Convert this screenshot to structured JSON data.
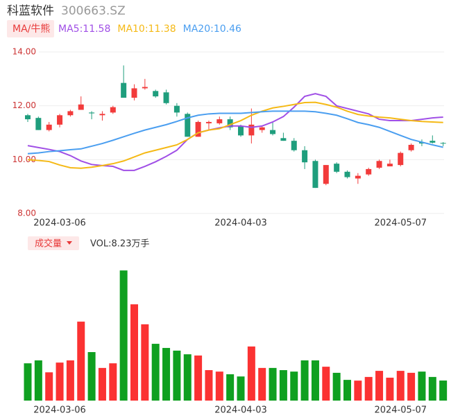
{
  "header": {
    "name": "科蓝软件",
    "code": "300663.SZ"
  },
  "chart_data": [
    {
      "type": "candlestick",
      "tab": "MA/牛熊",
      "categories": [
        null,
        null,
        null,
        "2024-03-06",
        null,
        null,
        null,
        null,
        null,
        null,
        null,
        null,
        null,
        null,
        null,
        null,
        null,
        null,
        null,
        null,
        "2024-04-03",
        null,
        null,
        null,
        null,
        null,
        null,
        null,
        null,
        null,
        null,
        null,
        null,
        null,
        null,
        "2024-05-07",
        null,
        null,
        null,
        null
      ],
      "open": [
        11.65,
        11.55,
        11.1,
        11.3,
        11.65,
        11.85,
        11.75,
        11.65,
        11.75,
        12.85,
        12.3,
        12.65,
        12.55,
        12.5,
        12.0,
        11.7,
        10.85,
        11.35,
        11.35,
        11.5,
        11.25,
        10.9,
        11.1,
        11.1,
        10.8,
        10.7,
        10.35,
        9.95,
        9.1,
        9.85,
        9.55,
        9.3,
        9.45,
        9.7,
        9.75,
        9.8,
        10.35,
        10.65,
        10.7,
        10.62
      ],
      "close": [
        11.5,
        11.1,
        11.3,
        11.65,
        11.8,
        12.05,
        11.72,
        11.7,
        11.95,
        12.3,
        12.65,
        12.7,
        12.35,
        12.1,
        11.75,
        10.85,
        11.4,
        11.4,
        11.5,
        11.2,
        10.9,
        11.3,
        11.2,
        10.95,
        10.7,
        10.35,
        9.9,
        8.95,
        9.8,
        9.55,
        9.35,
        9.4,
        9.65,
        9.95,
        9.85,
        10.25,
        10.55,
        10.6,
        10.63,
        10.6
      ],
      "high": [
        11.7,
        11.6,
        11.4,
        11.7,
        11.85,
        12.35,
        11.8,
        11.8,
        12.0,
        13.5,
        12.8,
        13.0,
        12.6,
        12.6,
        12.1,
        11.75,
        11.45,
        11.45,
        11.6,
        11.6,
        11.3,
        11.9,
        11.25,
        11.4,
        11.0,
        10.8,
        10.5,
        10.0,
        9.8,
        9.9,
        9.6,
        9.5,
        9.7,
        10.0,
        10.0,
        10.3,
        10.6,
        10.75,
        10.9,
        10.65
      ],
      "low": [
        11.4,
        11.1,
        11.05,
        11.2,
        11.6,
        11.85,
        11.5,
        11.45,
        11.7,
        12.3,
        12.2,
        12.6,
        12.3,
        12.05,
        11.6,
        10.85,
        10.85,
        11.1,
        11.3,
        11.1,
        10.85,
        10.6,
        11.0,
        10.9,
        10.7,
        10.3,
        9.65,
        8.95,
        9.05,
        9.5,
        9.3,
        9.1,
        9.4,
        9.65,
        9.75,
        9.75,
        10.3,
        10.5,
        10.6,
        10.5
      ],
      "up_color": "#f23b3b",
      "down_color": "#1f9e7d",
      "series": [
        {
          "name": "MA5:11.58",
          "color": "#a04fe6",
          "values": [
            10.52,
            10.45,
            10.38,
            10.3,
            10.15,
            9.95,
            9.82,
            9.78,
            9.75,
            9.6,
            9.6,
            9.75,
            9.92,
            10.12,
            10.35,
            10.75,
            11.0,
            11.1,
            11.18,
            11.25,
            11.25,
            11.2,
            11.25,
            11.4,
            11.6,
            11.95,
            12.35,
            12.45,
            12.35,
            12.0,
            11.9,
            11.8,
            11.7,
            11.5,
            11.45,
            11.45,
            11.45,
            11.5,
            11.55,
            11.58
          ]
        },
        {
          "name": "MA10:11.38",
          "color": "#f5b915",
          "values": [
            10.0,
            9.97,
            9.93,
            9.8,
            9.7,
            9.68,
            9.72,
            9.78,
            9.85,
            9.95,
            10.1,
            10.25,
            10.35,
            10.45,
            10.55,
            10.75,
            11.0,
            11.1,
            11.15,
            11.3,
            11.45,
            11.65,
            11.8,
            11.92,
            11.98,
            12.05,
            12.12,
            12.13,
            12.05,
            11.95,
            11.8,
            11.68,
            11.62,
            11.58,
            11.55,
            11.5,
            11.45,
            11.42,
            11.4,
            11.38
          ]
        },
        {
          "name": "MA20:10.46",
          "color": "#4a9ef0",
          "values": [
            10.22,
            10.25,
            10.3,
            10.33,
            10.37,
            10.4,
            10.5,
            10.6,
            10.72,
            10.85,
            10.98,
            11.1,
            11.2,
            11.3,
            11.42,
            11.55,
            11.65,
            11.7,
            11.72,
            11.72,
            11.72,
            11.75,
            11.78,
            11.8,
            11.8,
            11.8,
            11.8,
            11.78,
            11.72,
            11.65,
            11.52,
            11.38,
            11.3,
            11.2,
            11.05,
            10.9,
            10.75,
            10.65,
            10.55,
            10.46
          ]
        }
      ],
      "ylim": [
        8,
        14
      ],
      "yticks": [
        {
          "value": 14,
          "label": "14.00"
        },
        {
          "value": 12,
          "label": "12.00"
        },
        {
          "value": 10,
          "label": "10.00"
        },
        {
          "value": 8,
          "label": "8.00"
        }
      ],
      "grid": true
    },
    {
      "type": "bar",
      "tab": "成交量",
      "label": "VOL:8.23万手",
      "categories": [
        null,
        null,
        null,
        "2024-03-06",
        null,
        null,
        null,
        null,
        null,
        null,
        null,
        null,
        null,
        null,
        null,
        null,
        null,
        null,
        null,
        null,
        "2024-04-03",
        null,
        null,
        null,
        null,
        null,
        null,
        null,
        null,
        null,
        null,
        null,
        null,
        null,
        null,
        "2024-05-07",
        null,
        null,
        null,
        null
      ],
      "values": [
        15.3,
        16.5,
        11.6,
        15.6,
        16.5,
        32.4,
        19.9,
        13.4,
        15.3,
        53.4,
        39.5,
        31.3,
        23.3,
        21.6,
        20.5,
        19.0,
        18.5,
        12.5,
        11.9,
        10.8,
        9.9,
        22.2,
        13.4,
        13.4,
        12.5,
        11.9,
        16.5,
        16.5,
        13.9,
        11.4,
        8.5,
        8.2,
        9.7,
        12.2,
        9.4,
        12.2,
        11.4,
        11.9,
        9.7,
        8.23
      ],
      "up_color": "#fb3232",
      "down_color": "#0fa020",
      "ylim": [
        0,
        60
      ]
    }
  ]
}
